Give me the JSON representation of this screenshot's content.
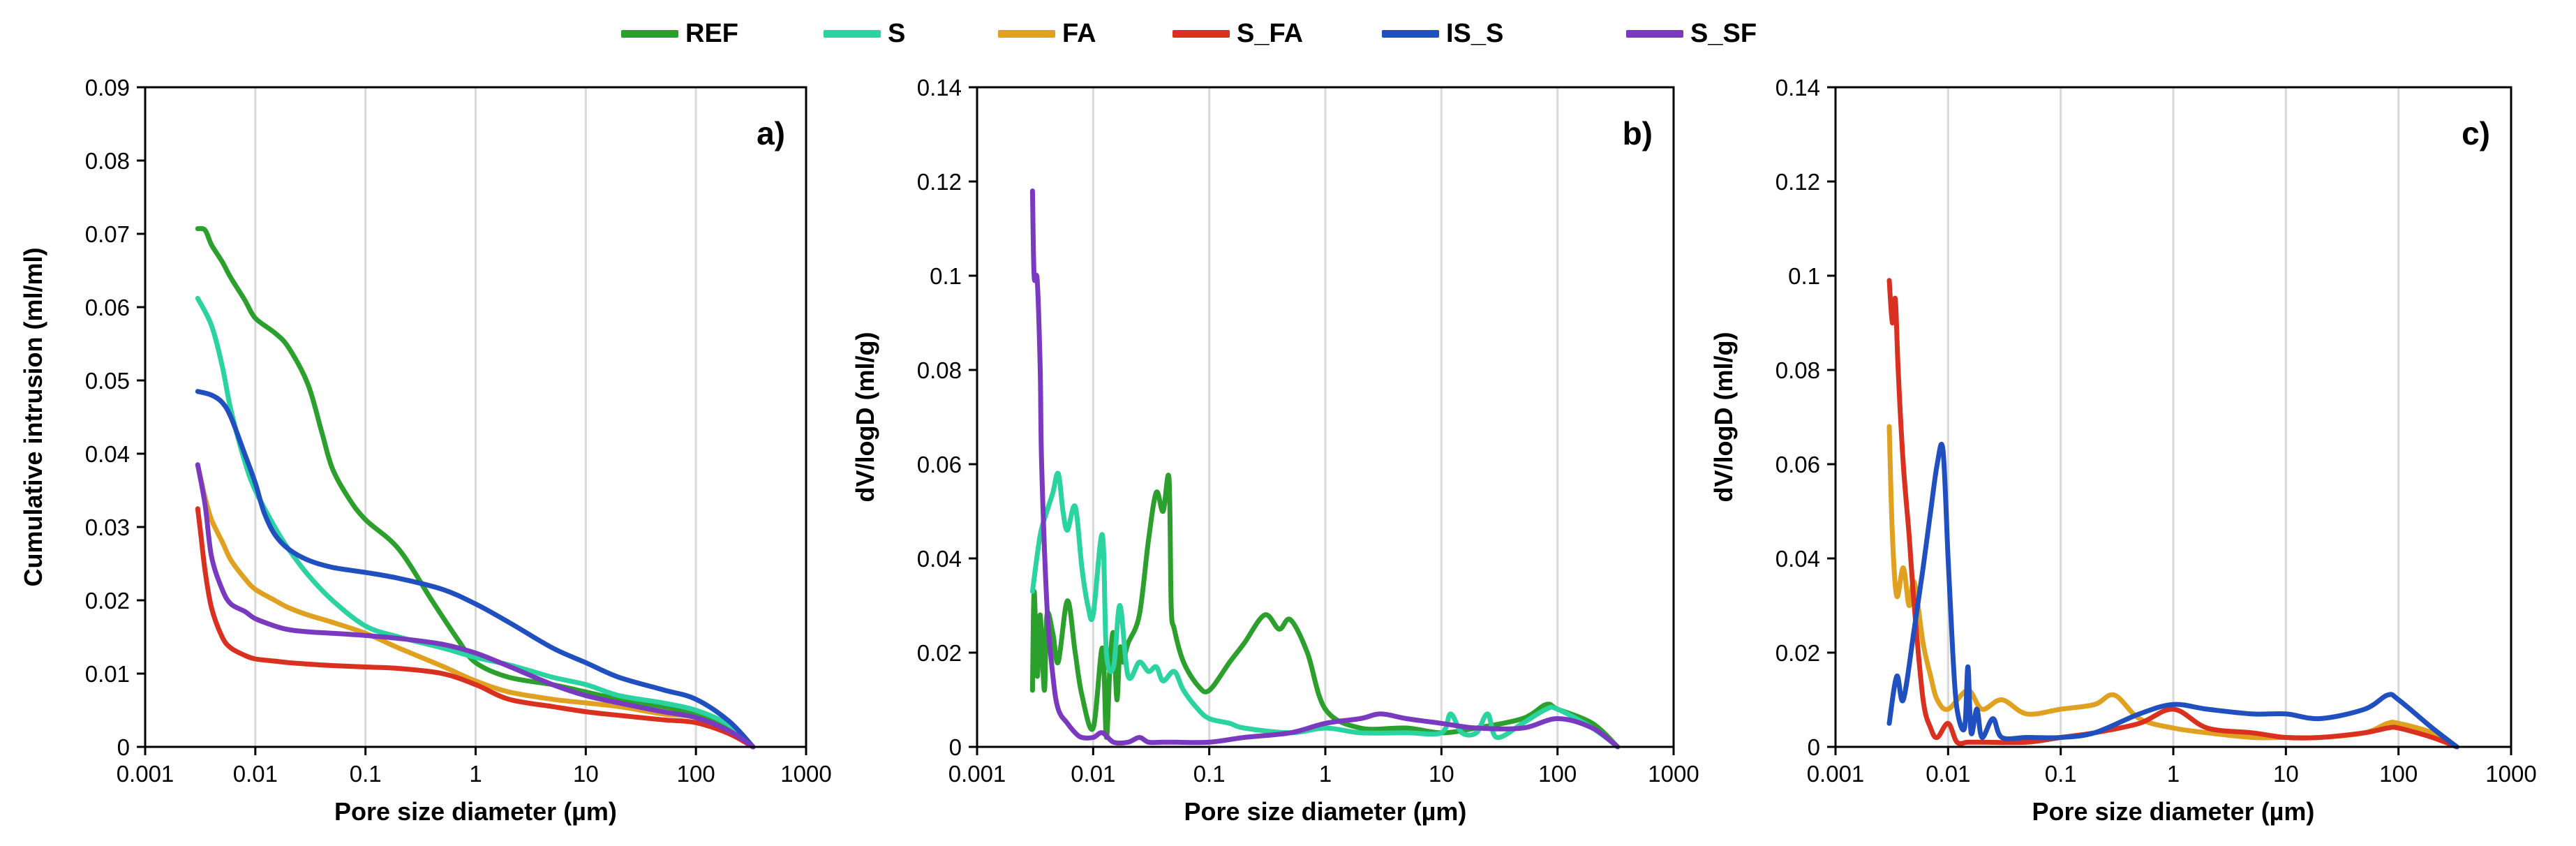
{
  "series_styles": [
    {
      "name": "REF",
      "color": "#2ca02c"
    },
    {
      "name": "S",
      "color": "#2ad3a0"
    },
    {
      "name": "FA",
      "color": "#e0a020"
    },
    {
      "name": "S_FA",
      "color": "#d93020"
    },
    {
      "name": "IS_S",
      "color": "#2050c0"
    },
    {
      "name": "S_SF",
      "color": "#7a3ac0"
    }
  ],
  "chart_data": [
    {
      "type": "line",
      "title": "a)",
      "xlabel": "Pore size diameter (µm)",
      "ylabel": "Cumulative intrusion (ml/ml)",
      "xscale": "log",
      "xlim": [
        0.001,
        1000
      ],
      "ylim": [
        0,
        0.09
      ],
      "xticks": [
        "0.001",
        "0.01",
        "0.1",
        "1",
        "10",
        "100",
        "1000"
      ],
      "yticks": [
        "0",
        "0.01",
        "0.02",
        "0.03",
        "0.04",
        "0.05",
        "0.06",
        "0.07",
        "0.08",
        "0.09"
      ],
      "series": [
        {
          "name": "REF",
          "x": [
            0.003,
            0.0035,
            0.004,
            0.005,
            0.006,
            0.008,
            0.01,
            0.015,
            0.02,
            0.03,
            0.04,
            0.05,
            0.07,
            0.1,
            0.2,
            0.4,
            0.7,
            1,
            2,
            5,
            10,
            20,
            50,
            100,
            200,
            330
          ],
          "y": [
            0.0707,
            0.0705,
            0.0685,
            0.0662,
            0.064,
            0.061,
            0.0585,
            0.0565,
            0.0545,
            0.0495,
            0.043,
            0.038,
            0.034,
            0.031,
            0.027,
            0.02,
            0.0145,
            0.0115,
            0.0095,
            0.0085,
            0.0075,
            0.0065,
            0.0055,
            0.0045,
            0.0025,
            0
          ]
        },
        {
          "name": "S",
          "x": [
            0.003,
            0.004,
            0.005,
            0.006,
            0.008,
            0.01,
            0.015,
            0.02,
            0.03,
            0.05,
            0.1,
            0.2,
            0.5,
            1,
            2,
            5,
            10,
            20,
            50,
            100,
            200,
            330
          ],
          "y": [
            0.0612,
            0.0575,
            0.052,
            0.046,
            0.039,
            0.035,
            0.03,
            0.027,
            0.0235,
            0.02,
            0.0165,
            0.015,
            0.0135,
            0.0122,
            0.0112,
            0.0095,
            0.0085,
            0.007,
            0.006,
            0.005,
            0.003,
            0
          ]
        },
        {
          "name": "FA",
          "x": [
            0.003,
            0.0035,
            0.004,
            0.005,
            0.006,
            0.008,
            0.01,
            0.015,
            0.02,
            0.03,
            0.05,
            0.1,
            0.2,
            0.5,
            1,
            2,
            5,
            10,
            20,
            50,
            100,
            200,
            330
          ],
          "y": [
            0.0385,
            0.034,
            0.031,
            0.028,
            0.0255,
            0.023,
            0.0215,
            0.02,
            0.019,
            0.018,
            0.017,
            0.0155,
            0.0135,
            0.011,
            0.009,
            0.0075,
            0.0065,
            0.006,
            0.0055,
            0.0045,
            0.004,
            0.002,
            0
          ]
        },
        {
          "name": "S_FA",
          "x": [
            0.003,
            0.0032,
            0.0035,
            0.004,
            0.005,
            0.006,
            0.008,
            0.01,
            0.015,
            0.02,
            0.03,
            0.05,
            0.1,
            0.2,
            0.5,
            1,
            2,
            5,
            10,
            20,
            50,
            100,
            200,
            330
          ],
          "y": [
            0.0325,
            0.029,
            0.024,
            0.019,
            0.015,
            0.0135,
            0.0125,
            0.012,
            0.0117,
            0.0115,
            0.0113,
            0.0111,
            0.0109,
            0.0107,
            0.01,
            0.0085,
            0.0065,
            0.0055,
            0.0048,
            0.0043,
            0.0037,
            0.0033,
            0.0018,
            0
          ]
        },
        {
          "name": "IS_S",
          "x": [
            0.003,
            0.004,
            0.005,
            0.006,
            0.008,
            0.01,
            0.012,
            0.015,
            0.02,
            0.03,
            0.05,
            0.1,
            0.2,
            0.5,
            1,
            2,
            5,
            10,
            20,
            50,
            100,
            200,
            330
          ],
          "y": [
            0.0485,
            0.048,
            0.047,
            0.045,
            0.04,
            0.036,
            0.032,
            0.029,
            0.027,
            0.0255,
            0.0245,
            0.0238,
            0.023,
            0.0215,
            0.0195,
            0.017,
            0.0135,
            0.0115,
            0.0095,
            0.0078,
            0.0065,
            0.0035,
            0
          ]
        },
        {
          "name": "S_SF",
          "x": [
            0.003,
            0.0035,
            0.004,
            0.005,
            0.006,
            0.008,
            0.01,
            0.015,
            0.02,
            0.03,
            0.05,
            0.1,
            0.2,
            0.5,
            1,
            2,
            5,
            10,
            20,
            50,
            100,
            200,
            330
          ],
          "y": [
            0.0385,
            0.033,
            0.026,
            0.0215,
            0.0195,
            0.0185,
            0.0175,
            0.0165,
            0.016,
            0.0157,
            0.0155,
            0.0152,
            0.0148,
            0.014,
            0.0128,
            0.011,
            0.0085,
            0.007,
            0.006,
            0.0048,
            0.004,
            0.0022,
            0
          ]
        }
      ]
    },
    {
      "type": "line",
      "title": "b)",
      "xlabel": "Pore size diameter (µm)",
      "ylabel": "dV/logD (ml/g)",
      "xscale": "log",
      "xlim": [
        0.001,
        1000
      ],
      "ylim": [
        0,
        0.14
      ],
      "xticks": [
        "0.001",
        "0.01",
        "0.1",
        "1",
        "10",
        "100",
        "1000"
      ],
      "yticks": [
        "0",
        "0.02",
        "0.04",
        "0.06",
        "0.08",
        "0.1",
        "0.12",
        "0.14"
      ],
      "series": [
        {
          "name": "REF",
          "x": [
            0.003,
            0.0031,
            0.0033,
            0.0035,
            0.0038,
            0.004,
            0.0045,
            0.005,
            0.006,
            0.007,
            0.008,
            0.01,
            0.012,
            0.013,
            0.014,
            0.015,
            0.016,
            0.017,
            0.018,
            0.02,
            0.025,
            0.03,
            0.035,
            0.04,
            0.045,
            0.047,
            0.05,
            0.06,
            0.08,
            0.1,
            0.15,
            0.2,
            0.3,
            0.4,
            0.5,
            0.7,
            1,
            2,
            5,
            10,
            20,
            50,
            80,
            100,
            200,
            330
          ],
          "y": [
            0.012,
            0.033,
            0.015,
            0.028,
            0.012,
            0.028,
            0.024,
            0.018,
            0.031,
            0.02,
            0.011,
            0.004,
            0.021,
            0.002,
            0.018,
            0.024,
            0.01,
            0.021,
            0.018,
            0.022,
            0.028,
            0.044,
            0.054,
            0.05,
            0.057,
            0.03,
            0.025,
            0.018,
            0.013,
            0.012,
            0.018,
            0.022,
            0.028,
            0.025,
            0.027,
            0.02,
            0.008,
            0.004,
            0.004,
            0.003,
            0.004,
            0.006,
            0.009,
            0.008,
            0.005,
            0
          ]
        },
        {
          "name": "S",
          "x": [
            0.003,
            0.0035,
            0.004,
            0.0045,
            0.005,
            0.0055,
            0.006,
            0.007,
            0.008,
            0.009,
            0.01,
            0.012,
            0.013,
            0.015,
            0.017,
            0.02,
            0.025,
            0.03,
            0.035,
            0.04,
            0.05,
            0.06,
            0.08,
            0.1,
            0.15,
            0.2,
            0.5,
            1,
            2,
            5,
            10,
            12,
            15,
            20,
            25,
            30,
            50,
            80,
            100,
            200,
            330
          ],
          "y": [
            0.033,
            0.045,
            0.05,
            0.054,
            0.058,
            0.05,
            0.046,
            0.051,
            0.038,
            0.03,
            0.028,
            0.045,
            0.02,
            0.017,
            0.03,
            0.015,
            0.018,
            0.016,
            0.017,
            0.014,
            0.016,
            0.012,
            0.008,
            0.006,
            0.005,
            0.004,
            0.003,
            0.004,
            0.003,
            0.003,
            0.003,
            0.007,
            0.003,
            0.003,
            0.007,
            0.002,
            0.005,
            0.008,
            0.008,
            0.004,
            0
          ]
        },
        {
          "name": "S_SF",
          "x": [
            0.003,
            0.0031,
            0.0033,
            0.0035,
            0.0036,
            0.004,
            0.0045,
            0.005,
            0.006,
            0.007,
            0.008,
            0.01,
            0.012,
            0.015,
            0.02,
            0.025,
            0.03,
            0.04,
            0.05,
            0.1,
            0.2,
            0.5,
            1,
            2,
            3,
            5,
            10,
            20,
            50,
            100,
            200,
            330
          ],
          "y": [
            0.118,
            0.1,
            0.099,
            0.08,
            0.06,
            0.03,
            0.015,
            0.008,
            0.005,
            0.003,
            0.002,
            0.002,
            0.003,
            0.001,
            0.001,
            0.002,
            0.001,
            0.001,
            0.001,
            0.001,
            0.002,
            0.003,
            0.005,
            0.006,
            0.007,
            0.006,
            0.005,
            0.004,
            0.004,
            0.006,
            0.004,
            0
          ]
        }
      ]
    },
    {
      "type": "line",
      "title": "c)",
      "xlabel": "Pore size diameter (µm)",
      "ylabel": "dV/logD (ml/g)",
      "xscale": "log",
      "xlim": [
        0.001,
        1000
      ],
      "ylim": [
        0,
        0.14
      ],
      "xticks": [
        "0.001",
        "0.01",
        "0.1",
        "1",
        "10",
        "100",
        "1000"
      ],
      "yticks": [
        "0",
        "0.02",
        "0.04",
        "0.06",
        "0.08",
        "0.1",
        "0.12",
        "0.14"
      ],
      "series": [
        {
          "name": "FA",
          "x": [
            0.003,
            0.0032,
            0.0035,
            0.004,
            0.0045,
            0.005,
            0.006,
            0.007,
            0.008,
            0.01,
            0.015,
            0.02,
            0.03,
            0.05,
            0.1,
            0.2,
            0.3,
            0.5,
            1,
            2,
            5,
            10,
            20,
            50,
            80,
            100,
            200,
            330
          ],
          "y": [
            0.068,
            0.045,
            0.032,
            0.038,
            0.03,
            0.035,
            0.022,
            0.015,
            0.01,
            0.008,
            0.012,
            0.008,
            0.01,
            0.007,
            0.008,
            0.009,
            0.011,
            0.006,
            0.004,
            0.003,
            0.002,
            0.002,
            0.002,
            0.003,
            0.005,
            0.005,
            0.003,
            0
          ]
        },
        {
          "name": "S_FA",
          "x": [
            0.003,
            0.0032,
            0.0034,
            0.0036,
            0.004,
            0.0045,
            0.005,
            0.006,
            0.007,
            0.008,
            0.01,
            0.012,
            0.015,
            0.02,
            0.05,
            0.1,
            0.2,
            0.5,
            1,
            2,
            5,
            10,
            20,
            50,
            80,
            100,
            200,
            330
          ],
          "y": [
            0.099,
            0.09,
            0.095,
            0.08,
            0.06,
            0.045,
            0.03,
            0.01,
            0.004,
            0.002,
            0.005,
            0.001,
            0.001,
            0.001,
            0.001,
            0.002,
            0.003,
            0.005,
            0.008,
            0.004,
            0.003,
            0.002,
            0.002,
            0.003,
            0.004,
            0.004,
            0.002,
            0
          ]
        },
        {
          "name": "IS_S",
          "x": [
            0.003,
            0.0035,
            0.004,
            0.005,
            0.006,
            0.007,
            0.008,
            0.009,
            0.01,
            0.011,
            0.012,
            0.014,
            0.015,
            0.016,
            0.018,
            0.02,
            0.025,
            0.03,
            0.05,
            0.1,
            0.2,
            0.5,
            1,
            2,
            5,
            10,
            20,
            50,
            80,
            100,
            200,
            330
          ],
          "y": [
            0.005,
            0.015,
            0.01,
            0.025,
            0.038,
            0.05,
            0.06,
            0.063,
            0.04,
            0.02,
            0.008,
            0.004,
            0.017,
            0.003,
            0.008,
            0.002,
            0.006,
            0.002,
            0.002,
            0.002,
            0.003,
            0.007,
            0.009,
            0.008,
            0.007,
            0.007,
            0.006,
            0.008,
            0.011,
            0.01,
            0.004,
            0
          ]
        }
      ]
    }
  ]
}
